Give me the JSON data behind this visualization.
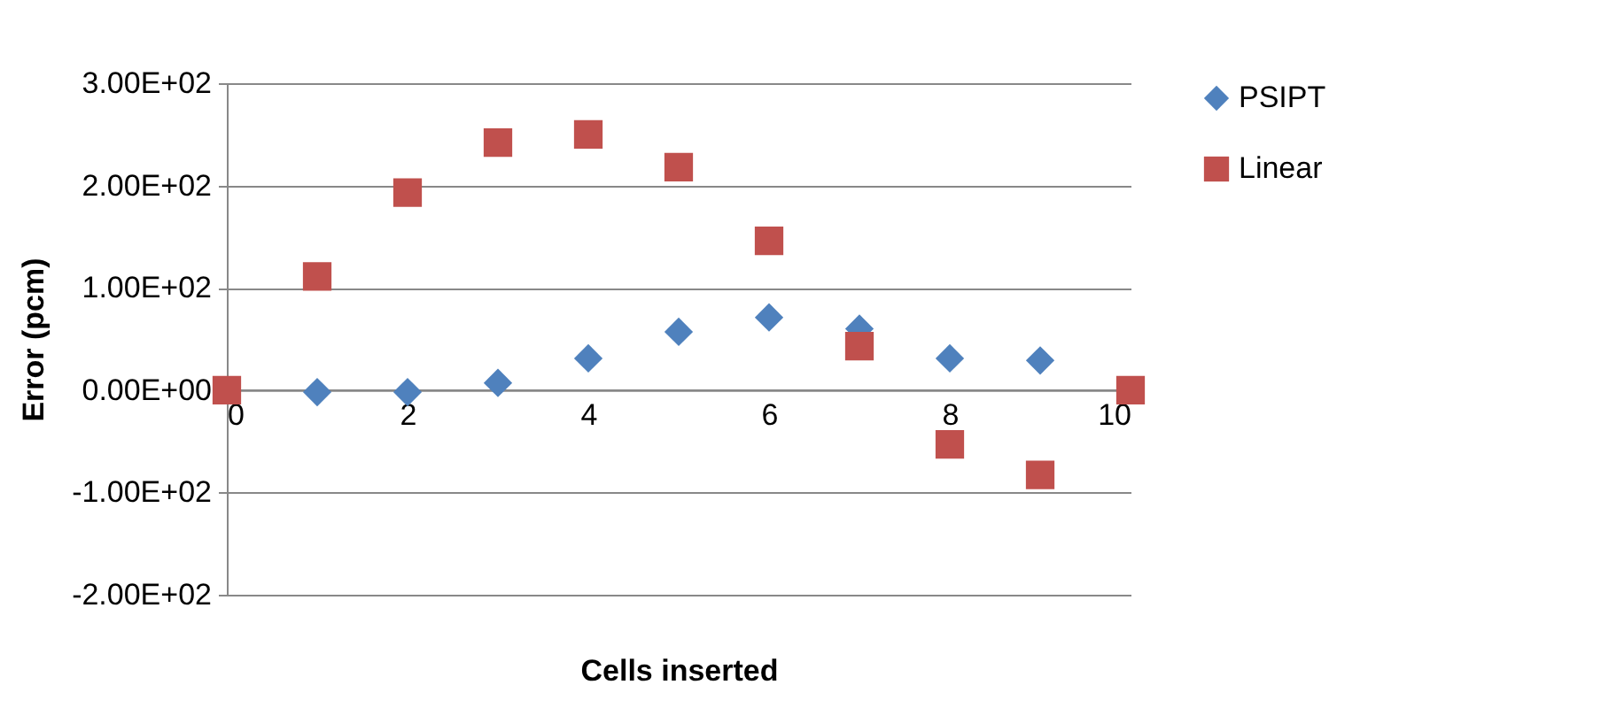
{
  "chart_data": {
    "type": "scatter",
    "xlabel": "Cells inserted",
    "ylabel": "Error (pcm)",
    "xlim": [
      0,
      10
    ],
    "xticks": [
      0,
      2,
      4,
      6,
      8,
      10
    ],
    "ylim": [
      -200,
      300
    ],
    "yticks": [
      {
        "value": -200,
        "label": "-2.00E+02"
      },
      {
        "value": -100,
        "label": "-1.00E+02"
      },
      {
        "value": 0,
        "label": "0.00E+00"
      },
      {
        "value": 100,
        "label": "1.00E+02"
      },
      {
        "value": 200,
        "label": "2.00E+02"
      },
      {
        "value": 300,
        "label": "3.00E+02"
      }
    ],
    "grid": "y",
    "legend": "right",
    "series": [
      {
        "name": "PSIPT",
        "color": "#4f81bd",
        "marker": "diamond",
        "x": [
          1,
          2,
          3,
          4,
          5,
          6,
          7,
          8,
          9
        ],
        "values": [
          -2,
          -2,
          7,
          31,
          57,
          71,
          60,
          31,
          29
        ]
      },
      {
        "name": "Linear",
        "color": "#c0504d",
        "marker": "square",
        "x": [
          0,
          1,
          2,
          3,
          4,
          5,
          6,
          7,
          8,
          9,
          10
        ],
        "values": [
          0,
          111,
          193,
          242,
          250,
          218,
          146,
          43,
          -53,
          -83,
          0
        ]
      }
    ]
  }
}
